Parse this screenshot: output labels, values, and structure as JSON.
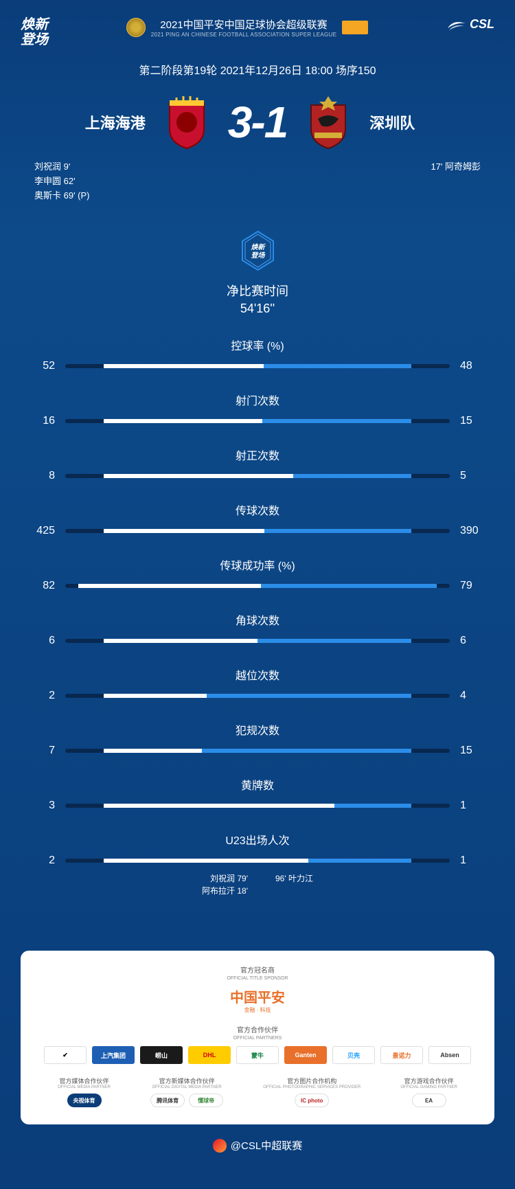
{
  "header": {
    "slogan_line1": "焕新",
    "slogan_line2": "登场",
    "league_title": "2021中国平安中国足球协会超级联赛",
    "league_subtitle": "2021 PING AN CHINESE FOOTBALL ASSOCIATION SUPER LEAGUE",
    "csl_text": "CSL"
  },
  "match": {
    "info": "第二阶段第19轮  2021年12月26日 18:00 场序150",
    "home_team": "上海海港",
    "away_team": "深圳队",
    "home_score": "3",
    "away_score": "1",
    "score_sep": "-",
    "home_crest_colors": {
      "top": "#ffc933",
      "body": "#c8102e",
      "border": "#8b0000"
    },
    "away_crest_colors": {
      "top": "#d4af37",
      "body": "#b22222",
      "border": "#5a0f0f"
    }
  },
  "scorers": {
    "home": [
      {
        "name": "刘祝润",
        "minute": "9'"
      },
      {
        "name": "李申圆",
        "minute": "62'"
      },
      {
        "name": "奥斯卡",
        "minute": "69' (P)"
      }
    ],
    "away": [
      {
        "minute": "17'",
        "name": "阿奇姆彭"
      }
    ]
  },
  "net_time": {
    "label": "净比赛时间",
    "value": "54'16''"
  },
  "stats": {
    "colors": {
      "home_bar": "#ffffff",
      "away_bar": "#2b8de8",
      "track": "#082850"
    },
    "bar_total_pct": 80,
    "rows": [
      {
        "label": "控球率 (%)",
        "home": "52",
        "away": "48",
        "home_w": 41.6,
        "away_w": 38.4
      },
      {
        "label": "射门次数",
        "home": "16",
        "away": "15",
        "home_w": 41.3,
        "away_w": 38.7
      },
      {
        "label": "射正次数",
        "home": "8",
        "away": "5",
        "home_w": 49.2,
        "away_w": 30.8
      },
      {
        "label": "传球次数",
        "home": "425",
        "away": "390",
        "home_w": 41.7,
        "away_w": 38.3
      },
      {
        "label": "传球成功率 (%)",
        "home": "82",
        "away": "79",
        "home_w": 47.5,
        "away_w": 45.7
      },
      {
        "label": "角球次数",
        "home": "6",
        "away": "6",
        "home_w": 40.0,
        "away_w": 40.0
      },
      {
        "label": "越位次数",
        "home": "2",
        "away": "4",
        "home_w": 26.7,
        "away_w": 53.3
      },
      {
        "label": "犯规次数",
        "home": "7",
        "away": "15",
        "home_w": 25.5,
        "away_w": 54.5
      },
      {
        "label": "黄牌数",
        "home": "3",
        "away": "1",
        "home_w": 60.0,
        "away_w": 20.0
      },
      {
        "label": "U23出场人次",
        "home": "2",
        "away": "1",
        "home_w": 53.3,
        "away_w": 26.7
      }
    ]
  },
  "u23_subs": {
    "home": [
      {
        "name": "刘祝润",
        "minute": "79'"
      },
      {
        "name": "阿布拉汗",
        "minute": "18'"
      }
    ],
    "away": [
      {
        "minute": "96'",
        "name": "叶力江"
      }
    ]
  },
  "sponsors": {
    "title_sponsor": {
      "heading": "官方冠名商",
      "sub": "OFFICIAL TITLE SPONSOR",
      "name": "中国平安",
      "tagline": "金融 · 科技"
    },
    "official_partners": {
      "heading": "官方合作伙伴",
      "sub": "OFFICIAL PARTNERS",
      "items": [
        {
          "text": "✔",
          "bg": "#ffffff",
          "color": "#000000"
        },
        {
          "text": "上汽集团",
          "bg": "#1e5fb4",
          "color": "#ffffff"
        },
        {
          "text": "崂山",
          "bg": "#1a1a1a",
          "color": "#ffffff"
        },
        {
          "text": "DHL",
          "bg": "#ffcc00",
          "color": "#d40511"
        },
        {
          "text": "蒙牛",
          "bg": "#ffffff",
          "color": "#0b7d3e"
        },
        {
          "text": "Ganten",
          "bg": "#e8702a",
          "color": "#ffffff"
        },
        {
          "text": "贝壳",
          "bg": "#ffffff",
          "color": "#1e9fff"
        },
        {
          "text": "景诺力",
          "bg": "#ffffff",
          "color": "#e8702a"
        },
        {
          "text": "Absen",
          "bg": "#ffffff",
          "color": "#333333"
        }
      ]
    },
    "bottom_sections": [
      {
        "heading": "官方媒体合作伙伴",
        "sub": "OFFICIAL MEDIA PARTNER",
        "logos": [
          {
            "text": "央视体育",
            "bg": "#0b3d78",
            "color": "#fff"
          }
        ]
      },
      {
        "heading": "官方新媒体合作伙伴",
        "sub": "OFFICIAL DIGITAL MEDIA PARTNER",
        "logos": [
          {
            "text": "腾讯体育",
            "bg": "#fff",
            "color": "#333"
          },
          {
            "text": "懂球帝",
            "bg": "#fff",
            "color": "#3c8a3c"
          }
        ]
      },
      {
        "heading": "官方图片合作机构",
        "sub": "OFFICIAL PHOTOGRAPHIC SERVICES PROVIDER",
        "logos": [
          {
            "text": "IC photo",
            "bg": "#fff",
            "color": "#b22"
          }
        ]
      },
      {
        "heading": "官方游戏合作伙伴",
        "sub": "OFFICIAL GAMING PARTNER",
        "logos": [
          {
            "text": "EA",
            "bg": "#fff",
            "color": "#333"
          }
        ]
      }
    ]
  },
  "footer": {
    "handle": "@CSL中超联赛"
  }
}
